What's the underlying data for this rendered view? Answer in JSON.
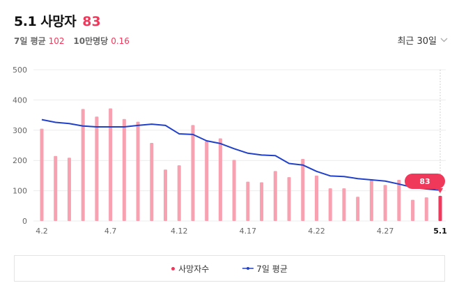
{
  "header": {
    "title": "5.1 사망자",
    "title_value": "83",
    "avg_label": "7일 평균",
    "avg_value": "102",
    "per100k_label": "10만명당",
    "per100k_value": "0.16",
    "period_label": "최근 30일",
    "period_icon": "chevron-down-icon"
  },
  "legend": {
    "deaths_label": "사망자수",
    "avg_label": "7일 평균"
  },
  "colors": {
    "bar": "#f7a1b1",
    "bar_latest": "#ef3a5d",
    "line": "#2040c8",
    "accent": "#f0385b",
    "grid": "#ececec"
  },
  "chart_data": {
    "type": "bar",
    "title": "",
    "xlabel": "",
    "ylabel": "",
    "ylim": [
      0,
      500
    ],
    "yticks": [
      0,
      100,
      200,
      300,
      400,
      500
    ],
    "grid": true,
    "legend_position": "bottom",
    "categories": [
      "4.2",
      "4.3",
      "4.4",
      "4.5",
      "4.6",
      "4.7",
      "4.8",
      "4.9",
      "4.10",
      "4.11",
      "4.12",
      "4.13",
      "4.14",
      "4.15",
      "4.16",
      "4.17",
      "4.18",
      "4.19",
      "4.20",
      "4.21",
      "4.22",
      "4.23",
      "4.24",
      "4.25",
      "4.26",
      "4.27",
      "4.28",
      "4.29",
      "4.30",
      "5.1"
    ],
    "xtick_labels": [
      "4.2",
      "4.7",
      "4.12",
      "4.17",
      "4.22",
      "4.27",
      "5.1"
    ],
    "series": [
      {
        "name": "사망자수",
        "type": "bar",
        "values": [
          305,
          215,
          209,
          370,
          345,
          372,
          337,
          328,
          258,
          170,
          184,
          317,
          264,
          273,
          202,
          130,
          128,
          165,
          145,
          205,
          150,
          108,
          108,
          80,
          138,
          119,
          136,
          70,
          78,
          83
        ]
      },
      {
        "name": "7일 평균",
        "type": "line",
        "values": [
          335,
          326,
          322,
          314,
          311,
          311,
          311,
          316,
          320,
          316,
          288,
          286,
          265,
          256,
          239,
          224,
          218,
          216,
          190,
          185,
          164,
          149,
          147,
          140,
          136,
          132,
          122,
          111,
          106,
          102
        ]
      }
    ],
    "annotation": {
      "category": "5.1",
      "label": "83"
    }
  }
}
